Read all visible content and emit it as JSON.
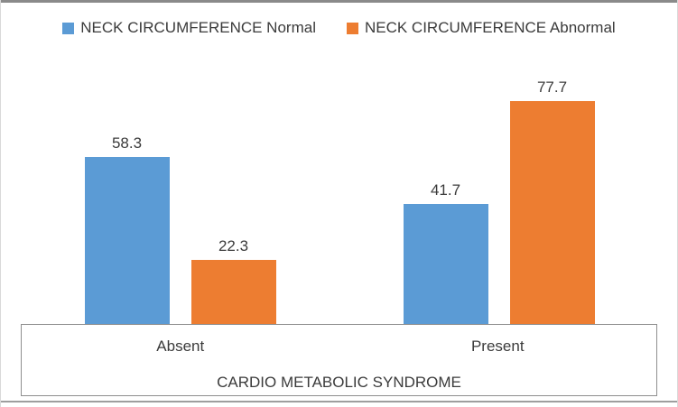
{
  "chart_data": {
    "type": "bar",
    "title": "",
    "categories": [
      "Absent",
      "Present"
    ],
    "series": [
      {
        "name": "NECK CIRCUMFERENCE Normal",
        "color": "#5B9BD5",
        "values": [
          58.3,
          41.7
        ]
      },
      {
        "name": "NECK CIRCUMFERENCE Abnormal",
        "color": "#ED7D31",
        "values": [
          22.3,
          77.7
        ]
      }
    ],
    "xlabel": "CARDIO METABOLIC SYNDROME",
    "ylabel": "",
    "ylim": [
      0,
      90
    ],
    "grid": false,
    "axis_y_visible": false,
    "legend_position": "top",
    "data_labels_visible": true,
    "colors": {
      "text": "#3b3b3b",
      "axis_line": "#8e8e8e",
      "frame_top": "#8a8a8a",
      "frame_bottom": "#9e9e9e",
      "frame_sides": "#d9d9d9",
      "background": "#ffffff"
    }
  }
}
